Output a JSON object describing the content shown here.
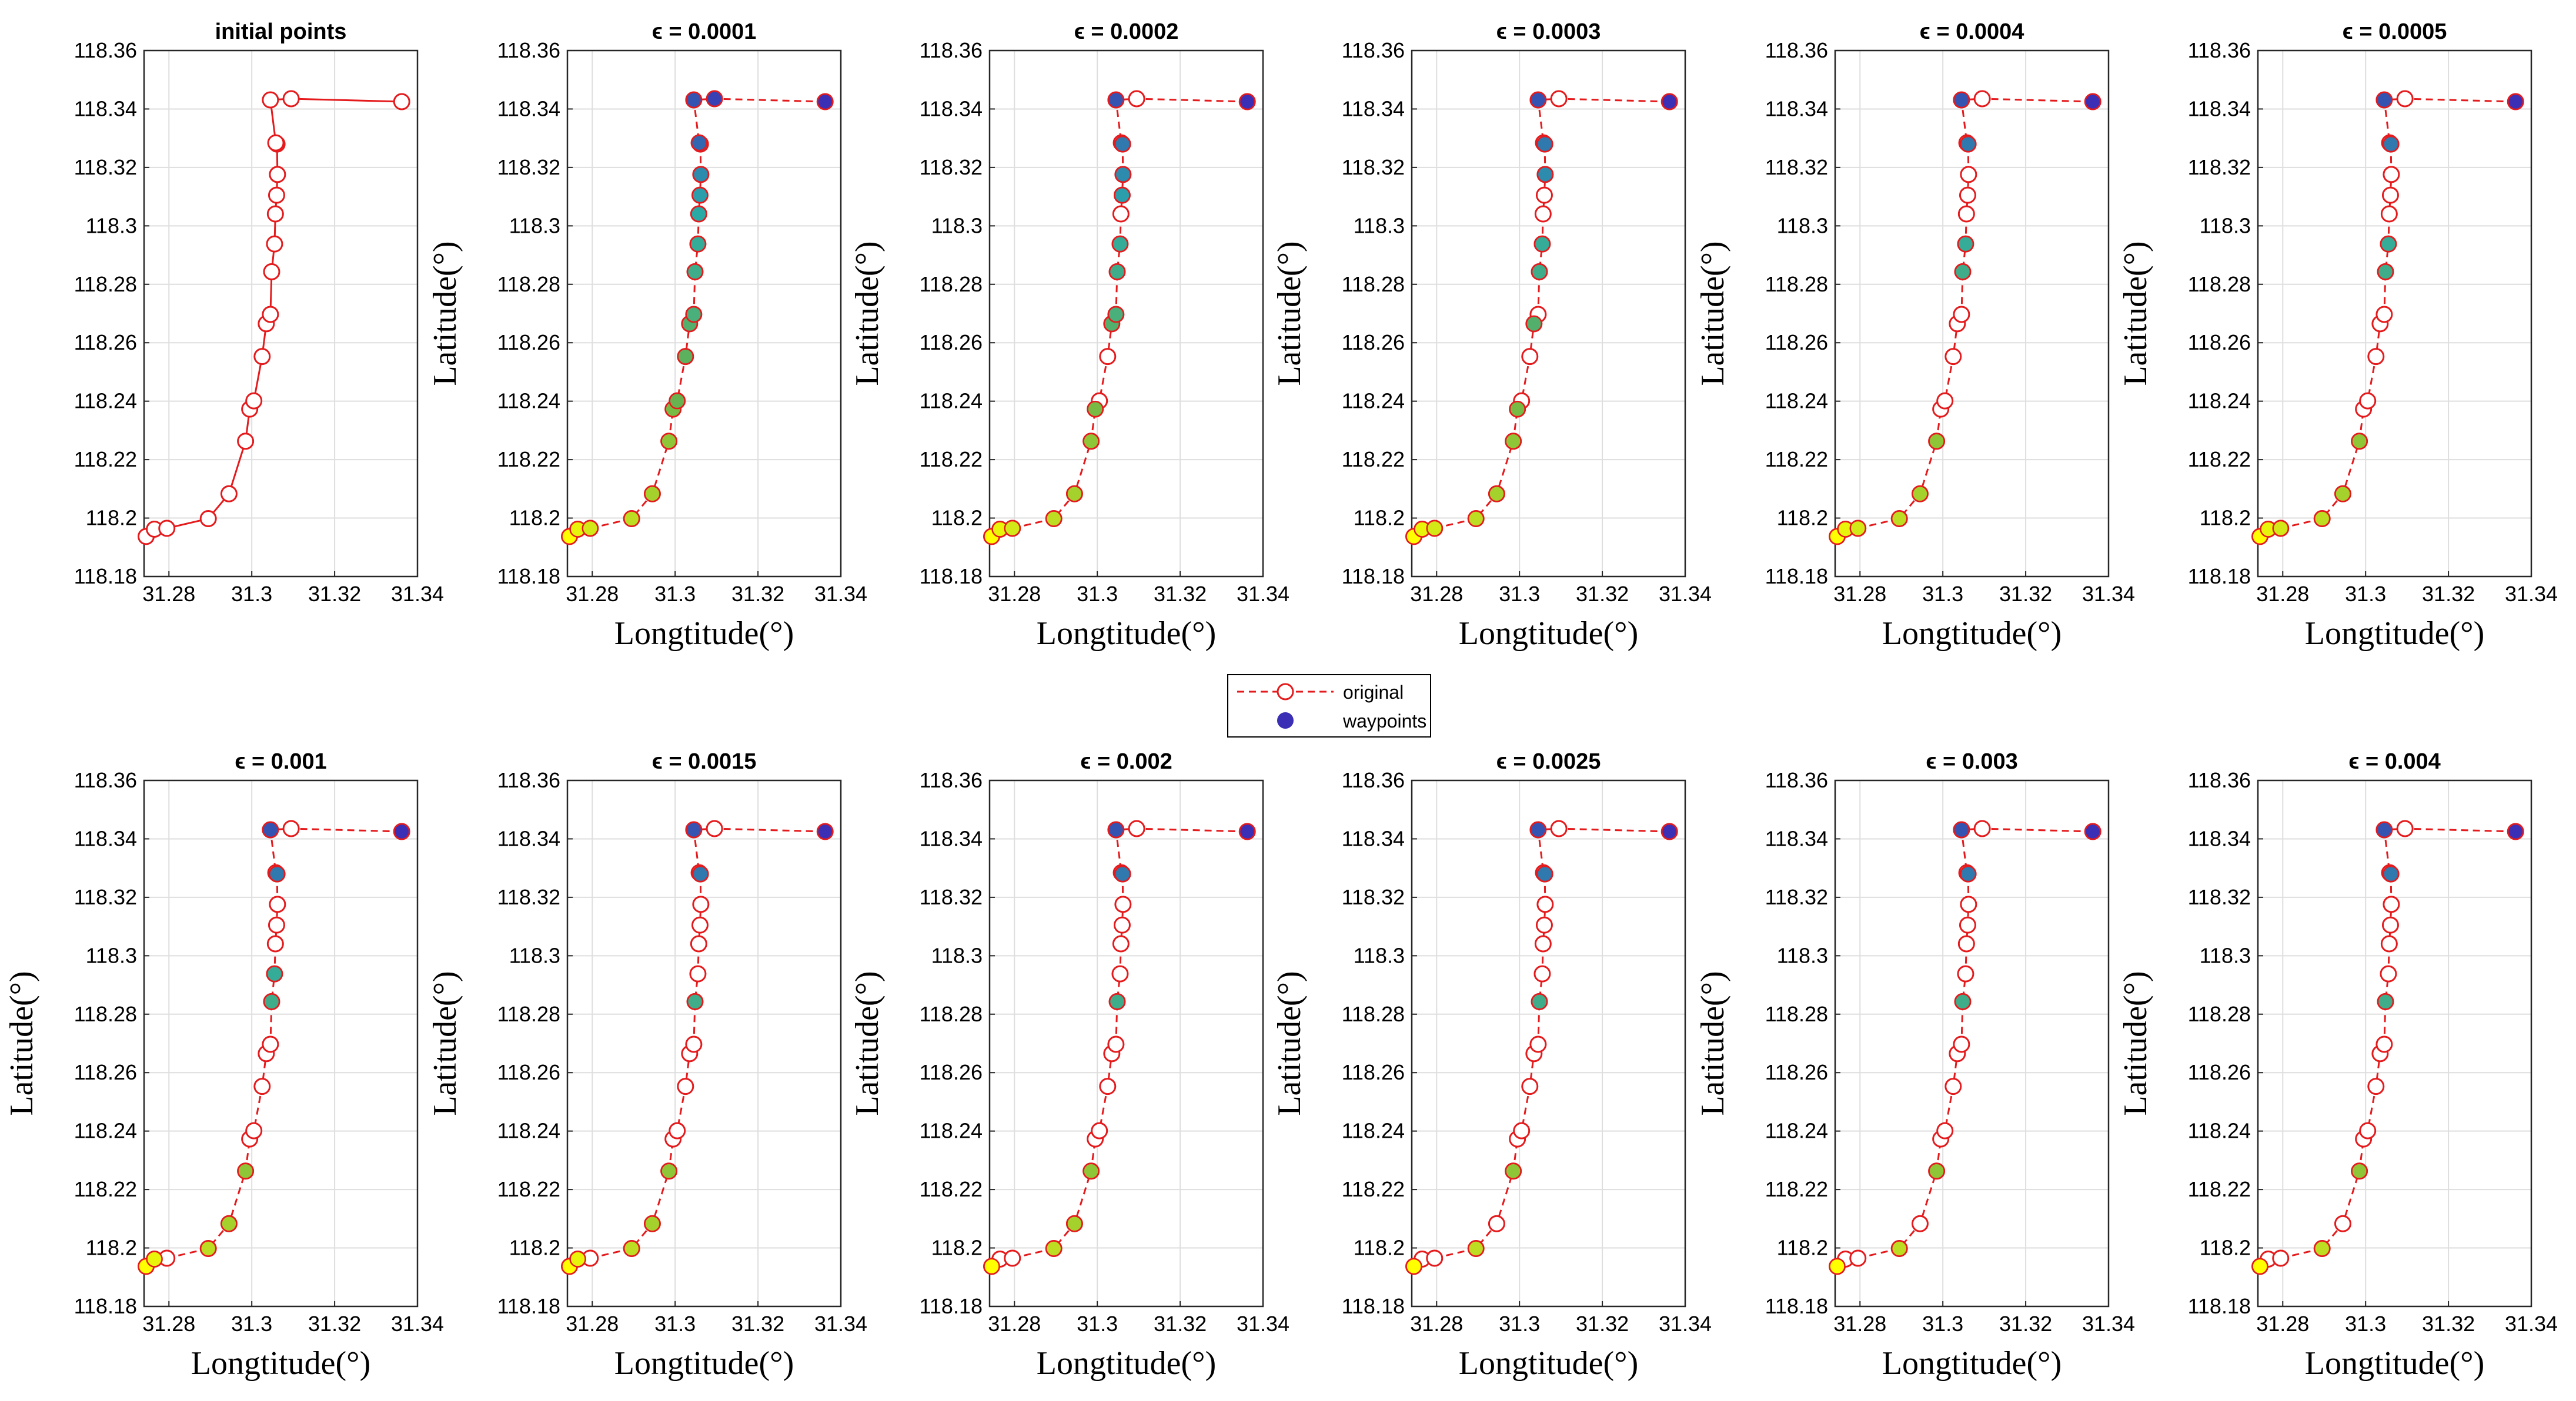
{
  "chart_data": {
    "type": "scatter",
    "xlabel": "Longtitude(°)",
    "ylabel": "Latitude(°)",
    "xlim": [
      31.274,
      31.34
    ],
    "ylim": [
      118.18,
      118.36
    ],
    "xticks": [
      "31.28",
      "31.3",
      "31.32",
      "31.34"
    ],
    "xtick_values": [
      31.28,
      31.3,
      31.32,
      31.34
    ],
    "yticks": [
      "118.18",
      "118.2",
      "118.22",
      "118.24",
      "118.26",
      "118.28",
      "118.3",
      "118.32",
      "118.34",
      "118.36"
    ],
    "ytick_values": [
      118.18,
      118.2,
      118.22,
      118.24,
      118.26,
      118.28,
      118.3,
      118.32,
      118.34,
      118.36
    ],
    "grid": true,
    "legend": {
      "placement": "center",
      "entries": [
        "original",
        "waypoints"
      ]
    },
    "colors": {
      "original": "#e41a1c",
      "waypoint_start": "#ffff00",
      "waypoint_end": "#3a2fb5"
    },
    "points": {
      "x": [
        31.2745,
        31.2765,
        31.2795,
        31.2895,
        31.2945,
        31.2985,
        31.2995,
        31.3005,
        31.3025,
        31.3035,
        31.3045,
        31.3048,
        31.3055,
        31.3057,
        31.306,
        31.3062,
        31.3061,
        31.3058,
        31.3045,
        31.3095,
        31.3362
      ],
      "y": [
        118.1937,
        118.1962,
        118.1965,
        118.1998,
        118.2083,
        118.2263,
        118.2373,
        118.2401,
        118.2553,
        118.2665,
        118.2697,
        118.2843,
        118.2938,
        118.3041,
        118.3105,
        118.3176,
        118.328,
        118.3284,
        118.3431,
        118.3435,
        118.3425
      ]
    },
    "panels": [
      {
        "title": "initial points",
        "style": "solid",
        "waypoints": []
      },
      {
        "title": "ϵ = 0.0001",
        "style": "dashed",
        "waypoints": [
          0,
          1,
          2,
          3,
          4,
          5,
          6,
          7,
          8,
          9,
          10,
          11,
          12,
          13,
          14,
          15,
          16,
          17,
          18,
          19,
          20
        ]
      },
      {
        "title": "ϵ = 0.0002",
        "style": "dashed",
        "waypoints": [
          0,
          1,
          2,
          3,
          4,
          5,
          6,
          9,
          10,
          11,
          12,
          14,
          15,
          16,
          18,
          20
        ]
      },
      {
        "title": "ϵ = 0.0003",
        "style": "dashed",
        "waypoints": [
          0,
          1,
          2,
          3,
          4,
          5,
          6,
          9,
          11,
          12,
          15,
          16,
          18,
          20
        ]
      },
      {
        "title": "ϵ = 0.0004",
        "style": "dashed",
        "waypoints": [
          0,
          1,
          2,
          3,
          4,
          5,
          11,
          12,
          16,
          18,
          20
        ]
      },
      {
        "title": "ϵ = 0.0005",
        "style": "dashed",
        "waypoints": [
          0,
          1,
          2,
          3,
          4,
          5,
          11,
          12,
          16,
          18,
          20
        ]
      },
      {
        "title": "ϵ = 0.001",
        "style": "dashed",
        "waypoints": [
          0,
          1,
          3,
          4,
          5,
          11,
          12,
          16,
          18,
          20
        ]
      },
      {
        "title": "ϵ = 0.0015",
        "style": "dashed",
        "waypoints": [
          0,
          1,
          3,
          4,
          5,
          11,
          16,
          18,
          20
        ]
      },
      {
        "title": "ϵ = 0.002",
        "style": "dashed",
        "waypoints": [
          0,
          3,
          4,
          5,
          11,
          16,
          18,
          20
        ]
      },
      {
        "title": "ϵ = 0.0025",
        "style": "dashed",
        "waypoints": [
          0,
          3,
          5,
          11,
          16,
          18,
          20
        ]
      },
      {
        "title": "ϵ = 0.003",
        "style": "dashed",
        "waypoints": [
          0,
          3,
          5,
          11,
          16,
          18,
          20
        ]
      },
      {
        "title": "ϵ = 0.004",
        "style": "dashed",
        "waypoints": [
          0,
          3,
          5,
          11,
          16,
          18,
          20
        ]
      }
    ]
  }
}
